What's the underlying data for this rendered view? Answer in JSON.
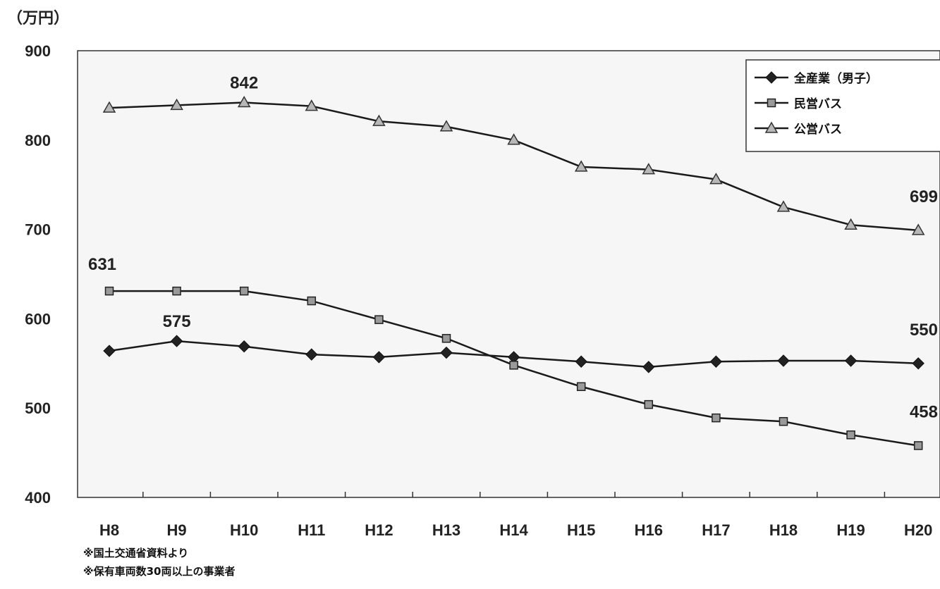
{
  "chart_data": {
    "type": "line",
    "unit_label": "（万円）",
    "categories": [
      "H8",
      "H9",
      "H10",
      "H11",
      "H12",
      "H13",
      "H14",
      "H15",
      "H16",
      "H17",
      "H18",
      "H19",
      "H20"
    ],
    "ylim": [
      400,
      900
    ],
    "yticks": [
      400,
      500,
      600,
      700,
      800,
      900
    ],
    "grid": false,
    "legend_position": "top-right",
    "series": [
      {
        "name": "全産業（男子）",
        "marker": "diamond",
        "color": "#222222",
        "values": [
          564,
          575,
          569,
          560,
          557,
          562,
          557,
          552,
          546,
          552,
          553,
          553,
          550
        ]
      },
      {
        "name": "民営バス",
        "marker": "square",
        "color": "#9a9a9a",
        "values": [
          631,
          631,
          631,
          620,
          599,
          578,
          548,
          524,
          504,
          489,
          485,
          470,
          458
        ]
      },
      {
        "name": "公営バス",
        "marker": "triangle",
        "color": "#b8b8b8",
        "values": [
          836,
          839,
          842,
          838,
          821,
          815,
          800,
          770,
          767,
          756,
          725,
          705,
          699
        ]
      }
    ],
    "annotations": [
      {
        "series": 2,
        "index": 2,
        "text": "842"
      },
      {
        "series": 2,
        "index": 12,
        "text": "699"
      },
      {
        "series": 1,
        "index": 0,
        "text": "631"
      },
      {
        "series": 1,
        "index": 12,
        "text": "458"
      },
      {
        "series": 0,
        "index": 1,
        "text": "575"
      },
      {
        "series": 0,
        "index": 12,
        "text": "550"
      }
    ],
    "notes": [
      "※国土交通省資料より",
      "※保有車両数30両以上の事業者"
    ]
  }
}
